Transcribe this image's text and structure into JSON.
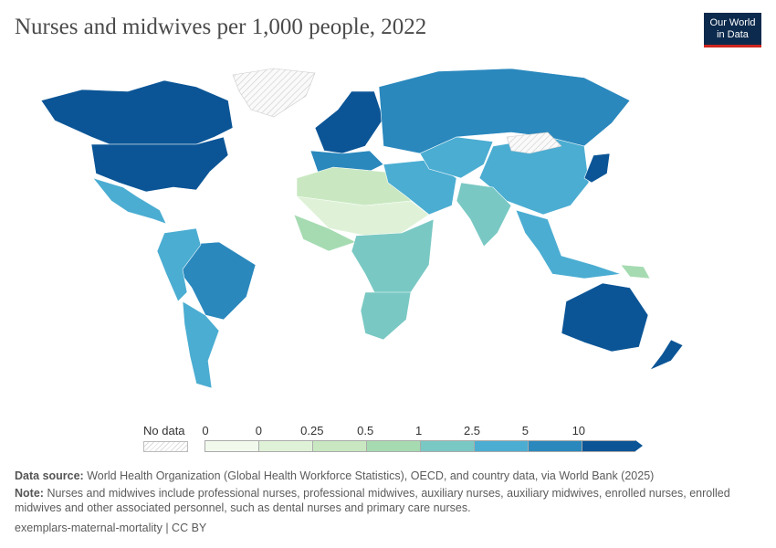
{
  "header": {
    "title": "Nurses and midwives per 1,000 people, 2022",
    "logo_line1": "Our World",
    "logo_line2": "in Data"
  },
  "chart_data": {
    "type": "choropleth",
    "title": "Nurses and midwives per 1,000 people, 2022",
    "legend": {
      "no_data_label": "No data",
      "tick_labels": [
        "0",
        "0",
        "0.25",
        "0.5",
        "1",
        "2.5",
        "5",
        "10"
      ],
      "bin_colors": [
        "#f1f9ec",
        "#dff2d8",
        "#c9e8c1",
        "#a6dbb2",
        "#79c8c3",
        "#4badd2",
        "#2a88bd",
        "#0b5596"
      ]
    },
    "regions": [
      {
        "name": "Canada",
        "bin": 7
      },
      {
        "name": "United States",
        "bin": 7
      },
      {
        "name": "Greenland",
        "bin": -1
      },
      {
        "name": "Mexico & Central America",
        "bin": 5
      },
      {
        "name": "Brazil",
        "bin": 6
      },
      {
        "name": "Andean South America",
        "bin": 5
      },
      {
        "name": "Argentina & Chile",
        "bin": 5
      },
      {
        "name": "Northern Europe",
        "bin": 7
      },
      {
        "name": "Western Europe",
        "bin": 6
      },
      {
        "name": "Russia",
        "bin": 6
      },
      {
        "name": "North Africa",
        "bin": 2
      },
      {
        "name": "Sahel",
        "bin": 1
      },
      {
        "name": "West Africa",
        "bin": 3
      },
      {
        "name": "Central & East Africa",
        "bin": 4
      },
      {
        "name": "Southern Africa",
        "bin": 4
      },
      {
        "name": "Middle East",
        "bin": 5
      },
      {
        "name": "Central Asia",
        "bin": 5
      },
      {
        "name": "China",
        "bin": 5
      },
      {
        "name": "Mongolia",
        "bin": -1
      },
      {
        "name": "India",
        "bin": 4
      },
      {
        "name": "Southeast Asia",
        "bin": 5
      },
      {
        "name": "Japan",
        "bin": 7
      },
      {
        "name": "Australia",
        "bin": 7
      },
      {
        "name": "New Zealand",
        "bin": 7
      },
      {
        "name": "Papua New Guinea",
        "bin": 3
      }
    ]
  },
  "footer": {
    "source_label": "Data source:",
    "source_text": "World Health Organization (Global Health Workforce Statistics), OECD, and country data, via World Bank (2025)",
    "note_label": "Note:",
    "note_text": "Nurses and midwives include professional nurses, professional midwives, auxiliary nurses, auxiliary midwives, enrolled nurses, enrolled midwives and other associated personnel, such as dental nurses and primary care nurses.",
    "credit": "exemplars-maternal-mortality | CC BY"
  }
}
